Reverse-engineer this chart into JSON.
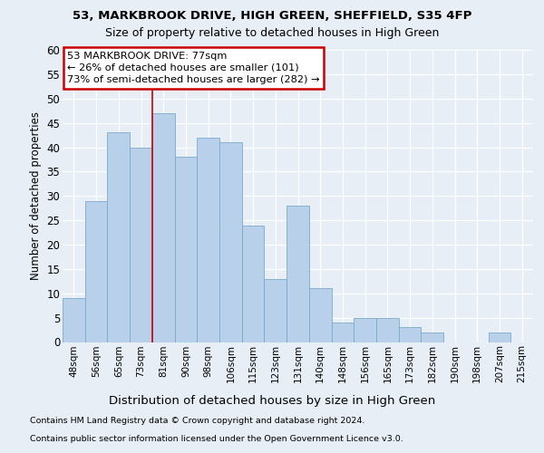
{
  "title1": "53, MARKBROOK DRIVE, HIGH GREEN, SHEFFIELD, S35 4FP",
  "title2": "Size of property relative to detached houses in High Green",
  "xlabel": "Distribution of detached houses by size in High Green",
  "ylabel": "Number of detached properties",
  "categories": [
    "48sqm",
    "56sqm",
    "65sqm",
    "73sqm",
    "81sqm",
    "90sqm",
    "98sqm",
    "106sqm",
    "115sqm",
    "123sqm",
    "131sqm",
    "140sqm",
    "148sqm",
    "156sqm",
    "165sqm",
    "173sqm",
    "182sqm",
    "190sqm",
    "198sqm",
    "207sqm",
    "215sqm"
  ],
  "values": [
    9,
    29,
    43,
    40,
    47,
    38,
    42,
    41,
    24,
    13,
    28,
    11,
    4,
    5,
    5,
    3,
    2,
    0,
    0,
    2,
    0
  ],
  "bar_color": "#b8d0ea",
  "bar_edge_color": "#7aaacb",
  "red_line_x": 3.5,
  "annotation_line1": "53 MARKBROOK DRIVE: 77sqm",
  "annotation_line2": "← 26% of detached houses are smaller (101)",
  "annotation_line3": "73% of semi-detached houses are larger (282) →",
  "ann_box_fc": "#ffffff",
  "ann_box_ec": "#cc0000",
  "ylim": [
    0,
    60
  ],
  "yticks": [
    0,
    5,
    10,
    15,
    20,
    25,
    30,
    35,
    40,
    45,
    50,
    55,
    60
  ],
  "bg_color": "#e8eef6",
  "grid_color": "#ffffff",
  "red_line_color": "#cc0000",
  "footer1": "Contains HM Land Registry data © Crown copyright and database right 2024.",
  "footer2": "Contains public sector information licensed under the Open Government Licence v3.0."
}
